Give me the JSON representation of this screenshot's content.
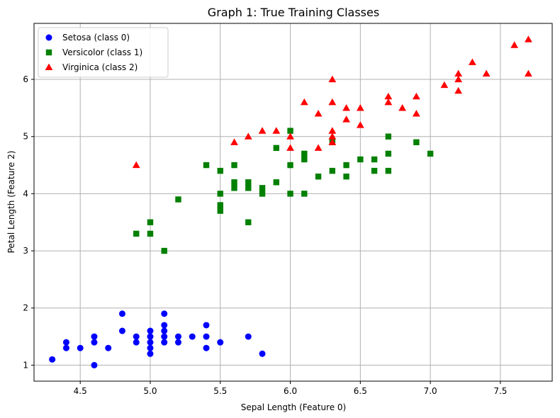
{
  "chart_data": {
    "type": "scatter",
    "title": "Graph 1: True Training Classes",
    "xlabel": "Sepal Length (Feature 0)",
    "ylabel": "Petal Length (Feature 2)",
    "xlim": [
      4.17,
      7.87
    ],
    "ylim": [
      0.72,
      6.98
    ],
    "xticks": [
      4.5,
      5.0,
      5.5,
      6.0,
      6.5,
      7.0,
      7.5
    ],
    "xtick_labels": [
      "4.5",
      "5.0",
      "5.5",
      "6.0",
      "6.5",
      "7.0",
      "7.5"
    ],
    "yticks": [
      1,
      2,
      3,
      4,
      5,
      6
    ],
    "ytick_labels": [
      "1",
      "2",
      "3",
      "4",
      "5",
      "6"
    ],
    "grid": true,
    "legend_position": "top-left",
    "series": [
      {
        "name": "Setosa (class 0)",
        "color": "#0000ff",
        "marker": "circle",
        "points": [
          [
            4.3,
            1.1
          ],
          [
            4.4,
            1.3
          ],
          [
            4.4,
            1.4
          ],
          [
            4.5,
            1.3
          ],
          [
            4.6,
            1.0
          ],
          [
            4.6,
            1.4
          ],
          [
            4.6,
            1.5
          ],
          [
            4.7,
            1.3
          ],
          [
            4.8,
            1.6
          ],
          [
            4.8,
            1.9
          ],
          [
            4.9,
            1.4
          ],
          [
            4.9,
            1.5
          ],
          [
            5.0,
            1.2
          ],
          [
            5.0,
            1.3
          ],
          [
            5.0,
            1.4
          ],
          [
            5.0,
            1.5
          ],
          [
            5.0,
            1.6
          ],
          [
            5.1,
            1.4
          ],
          [
            5.1,
            1.5
          ],
          [
            5.1,
            1.6
          ],
          [
            5.1,
            1.7
          ],
          [
            5.1,
            1.9
          ],
          [
            5.2,
            1.4
          ],
          [
            5.2,
            1.5
          ],
          [
            5.3,
            1.5
          ],
          [
            5.4,
            1.3
          ],
          [
            5.4,
            1.5
          ],
          [
            5.4,
            1.7
          ],
          [
            5.5,
            1.4
          ],
          [
            5.7,
            1.5
          ],
          [
            5.8,
            1.2
          ]
        ]
      },
      {
        "name": "Versicolor (class 1)",
        "color": "#008000",
        "marker": "square",
        "points": [
          [
            4.9,
            3.3
          ],
          [
            5.0,
            3.3
          ],
          [
            5.0,
            3.5
          ],
          [
            5.1,
            3.0
          ],
          [
            5.2,
            3.9
          ],
          [
            5.4,
            4.5
          ],
          [
            5.5,
            3.7
          ],
          [
            5.5,
            3.8
          ],
          [
            5.5,
            4.0
          ],
          [
            5.5,
            4.4
          ],
          [
            5.6,
            4.1
          ],
          [
            5.6,
            4.2
          ],
          [
            5.6,
            4.5
          ],
          [
            5.7,
            3.5
          ],
          [
            5.7,
            4.1
          ],
          [
            5.7,
            4.2
          ],
          [
            5.8,
            4.0
          ],
          [
            5.8,
            4.1
          ],
          [
            5.9,
            4.2
          ],
          [
            5.9,
            4.8
          ],
          [
            6.0,
            4.0
          ],
          [
            6.0,
            4.5
          ],
          [
            6.0,
            5.1
          ],
          [
            6.1,
            4.0
          ],
          [
            6.1,
            4.6
          ],
          [
            6.1,
            4.7
          ],
          [
            6.2,
            4.3
          ],
          [
            6.3,
            4.4
          ],
          [
            6.3,
            4.9
          ],
          [
            6.4,
            4.3
          ],
          [
            6.4,
            4.5
          ],
          [
            6.5,
            4.6
          ],
          [
            6.6,
            4.4
          ],
          [
            6.6,
            4.6
          ],
          [
            6.7,
            4.4
          ],
          [
            6.7,
            4.7
          ],
          [
            6.7,
            5.0
          ],
          [
            6.9,
            4.9
          ],
          [
            7.0,
            4.7
          ]
        ]
      },
      {
        "name": "Virginica (class 2)",
        "color": "#ff0000",
        "marker": "triangle",
        "points": [
          [
            4.9,
            4.5
          ],
          [
            5.6,
            4.9
          ],
          [
            5.7,
            5.0
          ],
          [
            5.8,
            5.1
          ],
          [
            5.9,
            5.1
          ],
          [
            6.0,
            4.8
          ],
          [
            6.0,
            5.0
          ],
          [
            6.1,
            5.6
          ],
          [
            6.2,
            4.8
          ],
          [
            6.2,
            5.4
          ],
          [
            6.3,
            4.9
          ],
          [
            6.3,
            5.0
          ],
          [
            6.3,
            5.1
          ],
          [
            6.3,
            5.6
          ],
          [
            6.3,
            6.0
          ],
          [
            6.4,
            5.3
          ],
          [
            6.4,
            5.5
          ],
          [
            6.5,
            5.2
          ],
          [
            6.5,
            5.5
          ],
          [
            6.7,
            5.6
          ],
          [
            6.7,
            5.7
          ],
          [
            6.8,
            5.5
          ],
          [
            6.9,
            5.4
          ],
          [
            6.9,
            5.7
          ],
          [
            7.1,
            5.9
          ],
          [
            7.2,
            5.8
          ],
          [
            7.2,
            6.0
          ],
          [
            7.2,
            6.1
          ],
          [
            7.3,
            6.3
          ],
          [
            7.4,
            6.1
          ],
          [
            7.6,
            6.6
          ],
          [
            7.7,
            6.1
          ],
          [
            7.7,
            6.7
          ]
        ]
      }
    ]
  }
}
